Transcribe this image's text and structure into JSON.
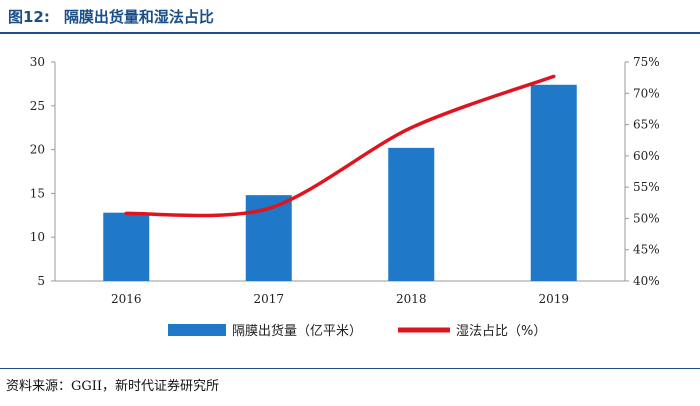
{
  "figure": {
    "number": "图12:",
    "title": "隔膜出货量和湿法占比"
  },
  "source": "资料来源：GGII，新时代证券研究所",
  "chart_data": {
    "type": "bar+line",
    "categories": [
      "2016",
      "2017",
      "2018",
      "2019"
    ],
    "series": [
      {
        "name": "隔膜出货量（亿平米）",
        "type": "bar",
        "axis": "left",
        "color": "#1f78c8",
        "values": [
          12.8,
          14.8,
          20.2,
          27.4
        ]
      },
      {
        "name": "湿法占比（%）",
        "type": "line",
        "axis": "right",
        "color": "#e0141e",
        "values": [
          50.8,
          51.6,
          64.5,
          72.7
        ]
      }
    ],
    "y_left": {
      "min": 5,
      "max": 30,
      "ticks": [
        "5",
        "10",
        "15",
        "20",
        "25",
        "30"
      ]
    },
    "y_right": {
      "min": 40,
      "max": 75,
      "ticks": [
        "40%",
        "45%",
        "50%",
        "55%",
        "60%",
        "65%",
        "70%",
        "75%"
      ]
    },
    "legend_position": "bottom",
    "grid": false
  }
}
